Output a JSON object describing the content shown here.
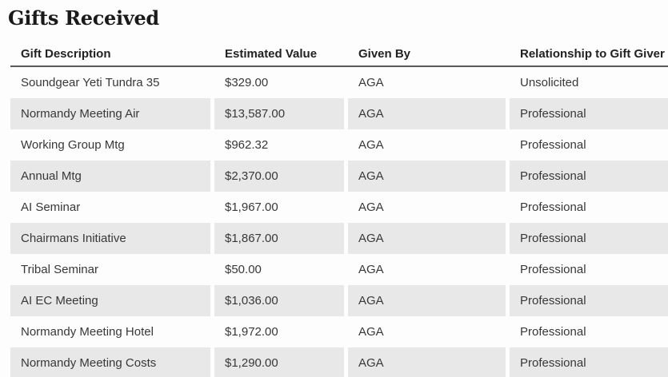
{
  "page": {
    "title": "Gifts Received"
  },
  "table": {
    "columns": [
      "Gift Description",
      "Estimated Value",
      "Given By",
      "Relationship to Gift Giver"
    ],
    "rows": [
      {
        "gift_description": "Soundgear Yeti Tundra 35",
        "estimated_value": "$329.00",
        "given_by": "AGA",
        "relationship": "Unsolicited"
      },
      {
        "gift_description": "Normandy Meeting Air",
        "estimated_value": "$13,587.00",
        "given_by": "AGA",
        "relationship": "Professional"
      },
      {
        "gift_description": "Working Group Mtg",
        "estimated_value": "$962.32",
        "given_by": "AGA",
        "relationship": "Professional"
      },
      {
        "gift_description": "Annual Mtg",
        "estimated_value": "$2,370.00",
        "given_by": "AGA",
        "relationship": "Professional"
      },
      {
        "gift_description": "AI Seminar",
        "estimated_value": "$1,967.00",
        "given_by": "AGA",
        "relationship": "Professional"
      },
      {
        "gift_description": "Chairmans Initiative",
        "estimated_value": "$1,867.00",
        "given_by": "AGA",
        "relationship": "Professional"
      },
      {
        "gift_description": "Tribal Seminar",
        "estimated_value": "$50.00",
        "given_by": "AGA",
        "relationship": "Professional"
      },
      {
        "gift_description": "AI EC Meeting",
        "estimated_value": "$1,036.00",
        "given_by": "AGA",
        "relationship": "Professional"
      },
      {
        "gift_description": "Normandy Meeting Hotel",
        "estimated_value": "$1,972.00",
        "given_by": "AGA",
        "relationship": "Professional"
      },
      {
        "gift_description": "Normandy Meeting Costs",
        "estimated_value": "$1,290.00",
        "given_by": "AGA",
        "relationship": "Professional"
      }
    ],
    "colors": {
      "stripe_background": "#e8e8e8",
      "header_underline": "#59595b",
      "body_text": "#383838",
      "title_text": "#1a1a1a",
      "page_background": "#fdfdfd"
    }
  }
}
